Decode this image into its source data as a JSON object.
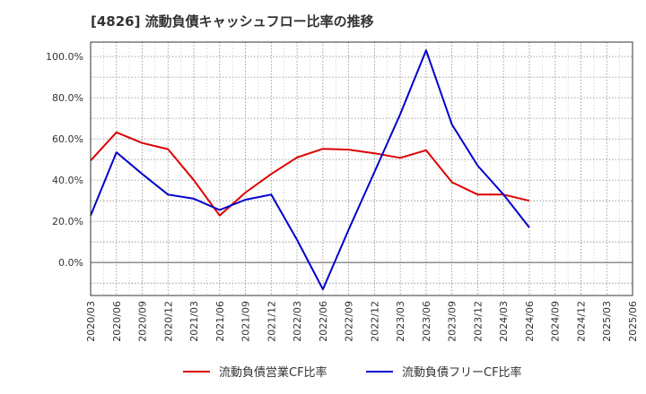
{
  "chart_data": {
    "type": "line",
    "title": "[4826]  流動負債キャッシュフロー比率の推移",
    "x": [
      "2020/03",
      "2020/06",
      "2020/09",
      "2020/12",
      "2021/03",
      "2021/06",
      "2021/09",
      "2021/12",
      "2022/03",
      "2022/06",
      "2022/09",
      "2022/12",
      "2023/03",
      "2023/06",
      "2023/09",
      "2023/12",
      "2024/03",
      "2024/06",
      "2024/09",
      "2024/12",
      "2025/03",
      "2025/06"
    ],
    "y_ticks": [
      "0.0%",
      "20.0%",
      "40.0%",
      "60.0%",
      "80.0%",
      "100.0%"
    ],
    "y_tick_values": [
      0,
      20,
      40,
      60,
      80,
      100
    ],
    "ylim": [
      -16,
      107
    ],
    "grid": true,
    "legend_position": "bottom",
    "series": [
      {
        "name": "流動負債営業CF比率",
        "color": "#dd0000",
        "values": [
          49.5,
          63.2,
          58.0,
          55.0,
          40.0,
          22.8,
          34.0,
          43.0,
          51.0,
          55.2,
          54.8,
          53.0,
          50.8,
          54.5,
          39.0,
          33.0,
          33.0,
          30.0,
          null,
          null,
          null,
          null
        ]
      },
      {
        "name": "流動負債フリーCF比率",
        "color": "#0000cc",
        "values": [
          22.8,
          53.5,
          43.0,
          33.0,
          31.0,
          25.5,
          30.5,
          33.0,
          11.0,
          -13.0,
          16.0,
          44.0,
          72.0,
          103.0,
          67.0,
          47.0,
          33.0,
          17.0,
          null,
          null,
          null,
          null
        ]
      }
    ]
  }
}
